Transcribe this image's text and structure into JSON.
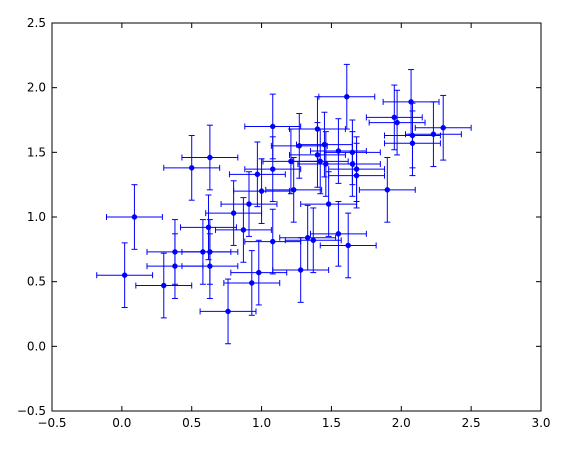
{
  "chart_data": {
    "type": "scatter",
    "title": "",
    "xlabel": "",
    "ylabel": "",
    "xlim": [
      -0.5,
      3.0
    ],
    "ylim": [
      -0.5,
      2.5
    ],
    "grid": false,
    "legend": "none",
    "x_ticks": [
      "−0.5",
      "0.0",
      "0.5",
      "1.0",
      "1.5",
      "2.0",
      "2.5",
      "3.0"
    ],
    "y_ticks": [
      "−0.5",
      "0.0",
      "0.5",
      "1.0",
      "1.5",
      "2.0",
      "2.5"
    ],
    "x_tick_values": [
      -0.5,
      0.0,
      0.5,
      1.0,
      1.5,
      2.0,
      2.5,
      3.0
    ],
    "y_tick_values": [
      -0.5,
      0.0,
      0.5,
      1.0,
      1.5,
      2.0,
      2.5
    ],
    "colors": {
      "series": "#0000ff",
      "axes": "#000000"
    },
    "series": [
      {
        "xerr": 0.2,
        "yerr": 0.25,
        "points": [
          [
            0.02,
            0.55
          ],
          [
            0.09,
            1.0
          ],
          [
            0.3,
            0.47
          ],
          [
            0.38,
            0.73
          ],
          [
            0.38,
            0.62
          ],
          [
            0.5,
            1.38
          ],
          [
            0.58,
            0.73
          ],
          [
            0.62,
            0.92
          ],
          [
            0.63,
            0.73
          ],
          [
            0.63,
            0.62
          ],
          [
            0.63,
            1.46
          ],
          [
            0.76,
            0.27
          ],
          [
            0.8,
            1.03
          ],
          [
            0.87,
            0.9
          ],
          [
            0.91,
            1.1
          ],
          [
            0.93,
            0.49
          ],
          [
            0.97,
            1.33
          ],
          [
            0.98,
            0.57
          ],
          [
            1.0,
            1.2
          ],
          [
            1.08,
            1.7
          ],
          [
            1.08,
            1.37
          ],
          [
            1.08,
            0.81
          ],
          [
            1.21,
            1.43
          ],
          [
            1.23,
            1.21
          ],
          [
            1.27,
            1.55
          ],
          [
            1.28,
            0.59
          ],
          [
            1.33,
            0.84
          ],
          [
            1.37,
            0.82
          ],
          [
            1.4,
            1.68
          ],
          [
            1.4,
            1.48
          ],
          [
            1.42,
            1.43
          ],
          [
            1.45,
            1.56
          ],
          [
            1.46,
            1.41
          ],
          [
            1.48,
            1.1
          ],
          [
            1.55,
            0.87
          ],
          [
            1.55,
            1.51
          ],
          [
            1.61,
            1.93
          ],
          [
            1.62,
            0.78
          ],
          [
            1.65,
            1.41
          ],
          [
            1.65,
            1.5
          ],
          [
            1.68,
            1.32
          ],
          [
            1.68,
            1.37
          ],
          [
            1.9,
            1.21
          ],
          [
            1.95,
            1.77
          ],
          [
            1.97,
            1.73
          ],
          [
            2.07,
            1.89
          ],
          [
            2.08,
            1.63
          ],
          [
            2.08,
            1.57
          ],
          [
            2.23,
            1.64
          ],
          [
            2.3,
            1.69
          ]
        ]
      }
    ]
  }
}
